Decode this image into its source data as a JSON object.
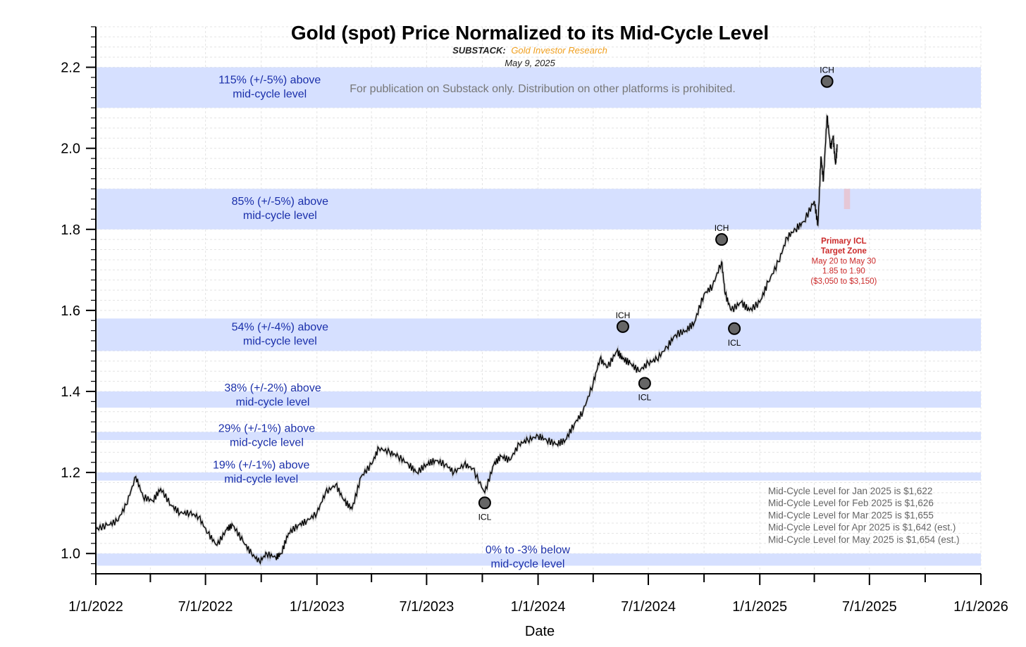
{
  "chart_data": {
    "type": "line",
    "title": "Gold (spot) Price Normalized to its Mid-Cycle Level",
    "subtitle_prefix": "SUBSTACK:",
    "subtitle_source": "Gold Investor Research",
    "date": "May 9, 2025",
    "watermark": "For publication on Substack only. Distribution on other platforms is prohibited.",
    "xlabel": "Date",
    "ylabel": "",
    "xlim": [
      "2022-01-01",
      "2026-01-01"
    ],
    "ylim": [
      0.95,
      2.3
    ],
    "x_ticks": [
      "1/1/2022",
      "7/1/2022",
      "1/1/2023",
      "7/1/2023",
      "1/1/2024",
      "7/1/2024",
      "1/1/2025",
      "7/1/2025",
      "1/1/2026"
    ],
    "x_tick_dates": [
      "2022-01-01",
      "2022-07-01",
      "2023-01-01",
      "2023-07-01",
      "2024-01-01",
      "2024-07-01",
      "2025-01-01",
      "2025-07-01",
      "2026-01-01"
    ],
    "y_ticks": [
      "1.0",
      "1.2",
      "1.4",
      "1.6",
      "1.8",
      "2.0",
      "2.2"
    ],
    "y_tick_values": [
      1.0,
      1.2,
      1.4,
      1.6,
      1.8,
      2.0,
      2.2
    ],
    "grid": true,
    "colors": {
      "band": "#d6e0ff",
      "line": "#000000",
      "band_text": "#1a2faa",
      "target": "#cc2a2a",
      "target_zone": "#e8c4d2",
      "source": "#f0a020",
      "marker": "#666666"
    },
    "bands": [
      {
        "from": 2.1,
        "to": 2.2,
        "line1": "115% (+/-5%) above",
        "line2": "mid-cycle level",
        "label_date": "2022-10-15",
        "label_y": 2.16
      },
      {
        "from": 1.8,
        "to": 1.9,
        "line1": "85% (+/-5%) above",
        "line2": "mid-cycle level",
        "label_date": "2022-11-01",
        "label_y": 1.86
      },
      {
        "from": 1.5,
        "to": 1.58,
        "line1": "54% (+/-4%) above",
        "line2": "mid-cycle level",
        "label_date": "2022-11-01",
        "label_y": 1.55
      },
      {
        "from": 1.36,
        "to": 1.4,
        "line1": "38% (+/-2%) above",
        "line2": "mid-cycle level",
        "label_date": "2022-10-20",
        "label_y": 1.4
      },
      {
        "from": 1.28,
        "to": 1.3,
        "line1": "29% (+/-1%) above",
        "line2": "mid-cycle level",
        "label_date": "2022-10-10",
        "label_y": 1.3
      },
      {
        "from": 1.18,
        "to": 1.2,
        "line1": "19% (+/-1%) above",
        "line2": "mid-cycle level",
        "label_date": "2022-10-01",
        "label_y": 1.21
      },
      {
        "from": 0.97,
        "to": 1.0,
        "line1": "0% to -3% below",
        "line2": "mid-cycle level",
        "label_date": "2023-12-15",
        "label_y": 1.0
      }
    ],
    "series": [
      {
        "x": [
          "2022-01-01",
          "2022-01-20",
          "2022-02-05",
          "2022-02-20",
          "2022-03-08",
          "2022-03-20",
          "2022-04-05",
          "2022-04-18",
          "2022-05-05",
          "2022-05-20",
          "2022-06-05",
          "2022-06-20",
          "2022-07-05",
          "2022-07-20",
          "2022-08-05",
          "2022-08-15",
          "2022-09-01",
          "2022-09-15",
          "2022-09-28",
          "2022-10-10",
          "2022-10-25",
          "2022-11-03",
          "2022-11-15",
          "2022-12-01",
          "2022-12-15",
          "2023-01-01",
          "2023-01-15",
          "2023-02-01",
          "2023-02-15",
          "2023-02-28",
          "2023-03-15",
          "2023-04-01",
          "2023-04-13",
          "2023-05-01",
          "2023-05-15",
          "2023-06-01",
          "2023-06-15",
          "2023-07-01",
          "2023-07-15",
          "2023-08-01",
          "2023-08-15",
          "2023-09-01",
          "2023-09-15",
          "2023-10-05",
          "2023-10-20",
          "2023-11-01",
          "2023-11-15",
          "2023-12-01",
          "2023-12-15",
          "2024-01-01",
          "2024-01-15",
          "2024-02-01",
          "2024-02-15",
          "2024-03-01",
          "2024-03-15",
          "2024-04-01",
          "2024-04-12",
          "2024-04-25",
          "2024-05-10",
          "2024-05-20",
          "2024-06-01",
          "2024-06-15",
          "2024-07-01",
          "2024-07-15",
          "2024-08-01",
          "2024-08-15",
          "2024-09-01",
          "2024-09-15",
          "2024-10-01",
          "2024-10-15",
          "2024-10-30",
          "2024-11-05",
          "2024-11-15",
          "2024-12-01",
          "2024-12-15",
          "2025-01-01",
          "2025-01-15",
          "2025-02-01",
          "2025-02-15",
          "2025-03-01",
          "2025-03-15",
          "2025-04-01",
          "2025-04-07",
          "2025-04-12",
          "2025-04-16",
          "2025-04-22",
          "2025-04-28",
          "2025-05-02",
          "2025-05-06",
          "2025-05-09"
        ],
        "values": [
          1.06,
          1.07,
          1.08,
          1.12,
          1.19,
          1.14,
          1.13,
          1.16,
          1.12,
          1.1,
          1.1,
          1.09,
          1.05,
          1.02,
          1.06,
          1.07,
          1.03,
          1.0,
          0.98,
          1.0,
          0.99,
          1.0,
          1.05,
          1.07,
          1.08,
          1.1,
          1.15,
          1.17,
          1.13,
          1.11,
          1.19,
          1.22,
          1.26,
          1.25,
          1.24,
          1.22,
          1.2,
          1.22,
          1.23,
          1.22,
          1.2,
          1.22,
          1.21,
          1.15,
          1.22,
          1.24,
          1.23,
          1.27,
          1.28,
          1.29,
          1.28,
          1.27,
          1.28,
          1.32,
          1.35,
          1.42,
          1.48,
          1.46,
          1.5,
          1.48,
          1.47,
          1.45,
          1.47,
          1.48,
          1.51,
          1.54,
          1.55,
          1.57,
          1.64,
          1.66,
          1.72,
          1.64,
          1.6,
          1.62,
          1.6,
          1.62,
          1.67,
          1.72,
          1.78,
          1.8,
          1.82,
          1.87,
          1.81,
          1.98,
          1.92,
          2.08,
          2.0,
          2.03,
          1.96,
          2.01
        ]
      }
    ],
    "markers": [
      {
        "label": "ICL",
        "date": "2023-10-05",
        "value": 1.125,
        "label_pos": "below"
      },
      {
        "label": "ICH",
        "date": "2024-05-20",
        "value": 1.56,
        "label_pos": "above"
      },
      {
        "label": "ICL",
        "date": "2024-06-25",
        "value": 1.42,
        "label_pos": "below"
      },
      {
        "label": "ICH",
        "date": "2024-10-30",
        "value": 1.775,
        "label_pos": "above"
      },
      {
        "label": "ICL",
        "date": "2024-11-20",
        "value": 1.555,
        "label_pos": "below"
      },
      {
        "label": "ICH",
        "date": "2025-04-22",
        "value": 2.165,
        "label_pos": "above"
      }
    ],
    "target_zone": {
      "from_date": "2025-05-20",
      "to_date": "2025-05-30",
      "low": 1.85,
      "high": 1.9,
      "lines": [
        "Primary ICL",
        "Target Zone",
        "May 20 to May 30",
        "1.85 to 1.90",
        "($3,050 to $3,150)"
      ]
    },
    "notes": [
      "Mid-Cycle Level for Jan 2025 is $1,622",
      "Mid-Cycle Level for Feb 2025 is $1,626",
      "Mid-Cycle Level for Mar 2025 is $1,655",
      "Mid-Cycle Level for Apr 2025 is $1,642 (est.)",
      "Mid-Cycle Level for May 2025 is $1,654 (est.)"
    ]
  }
}
